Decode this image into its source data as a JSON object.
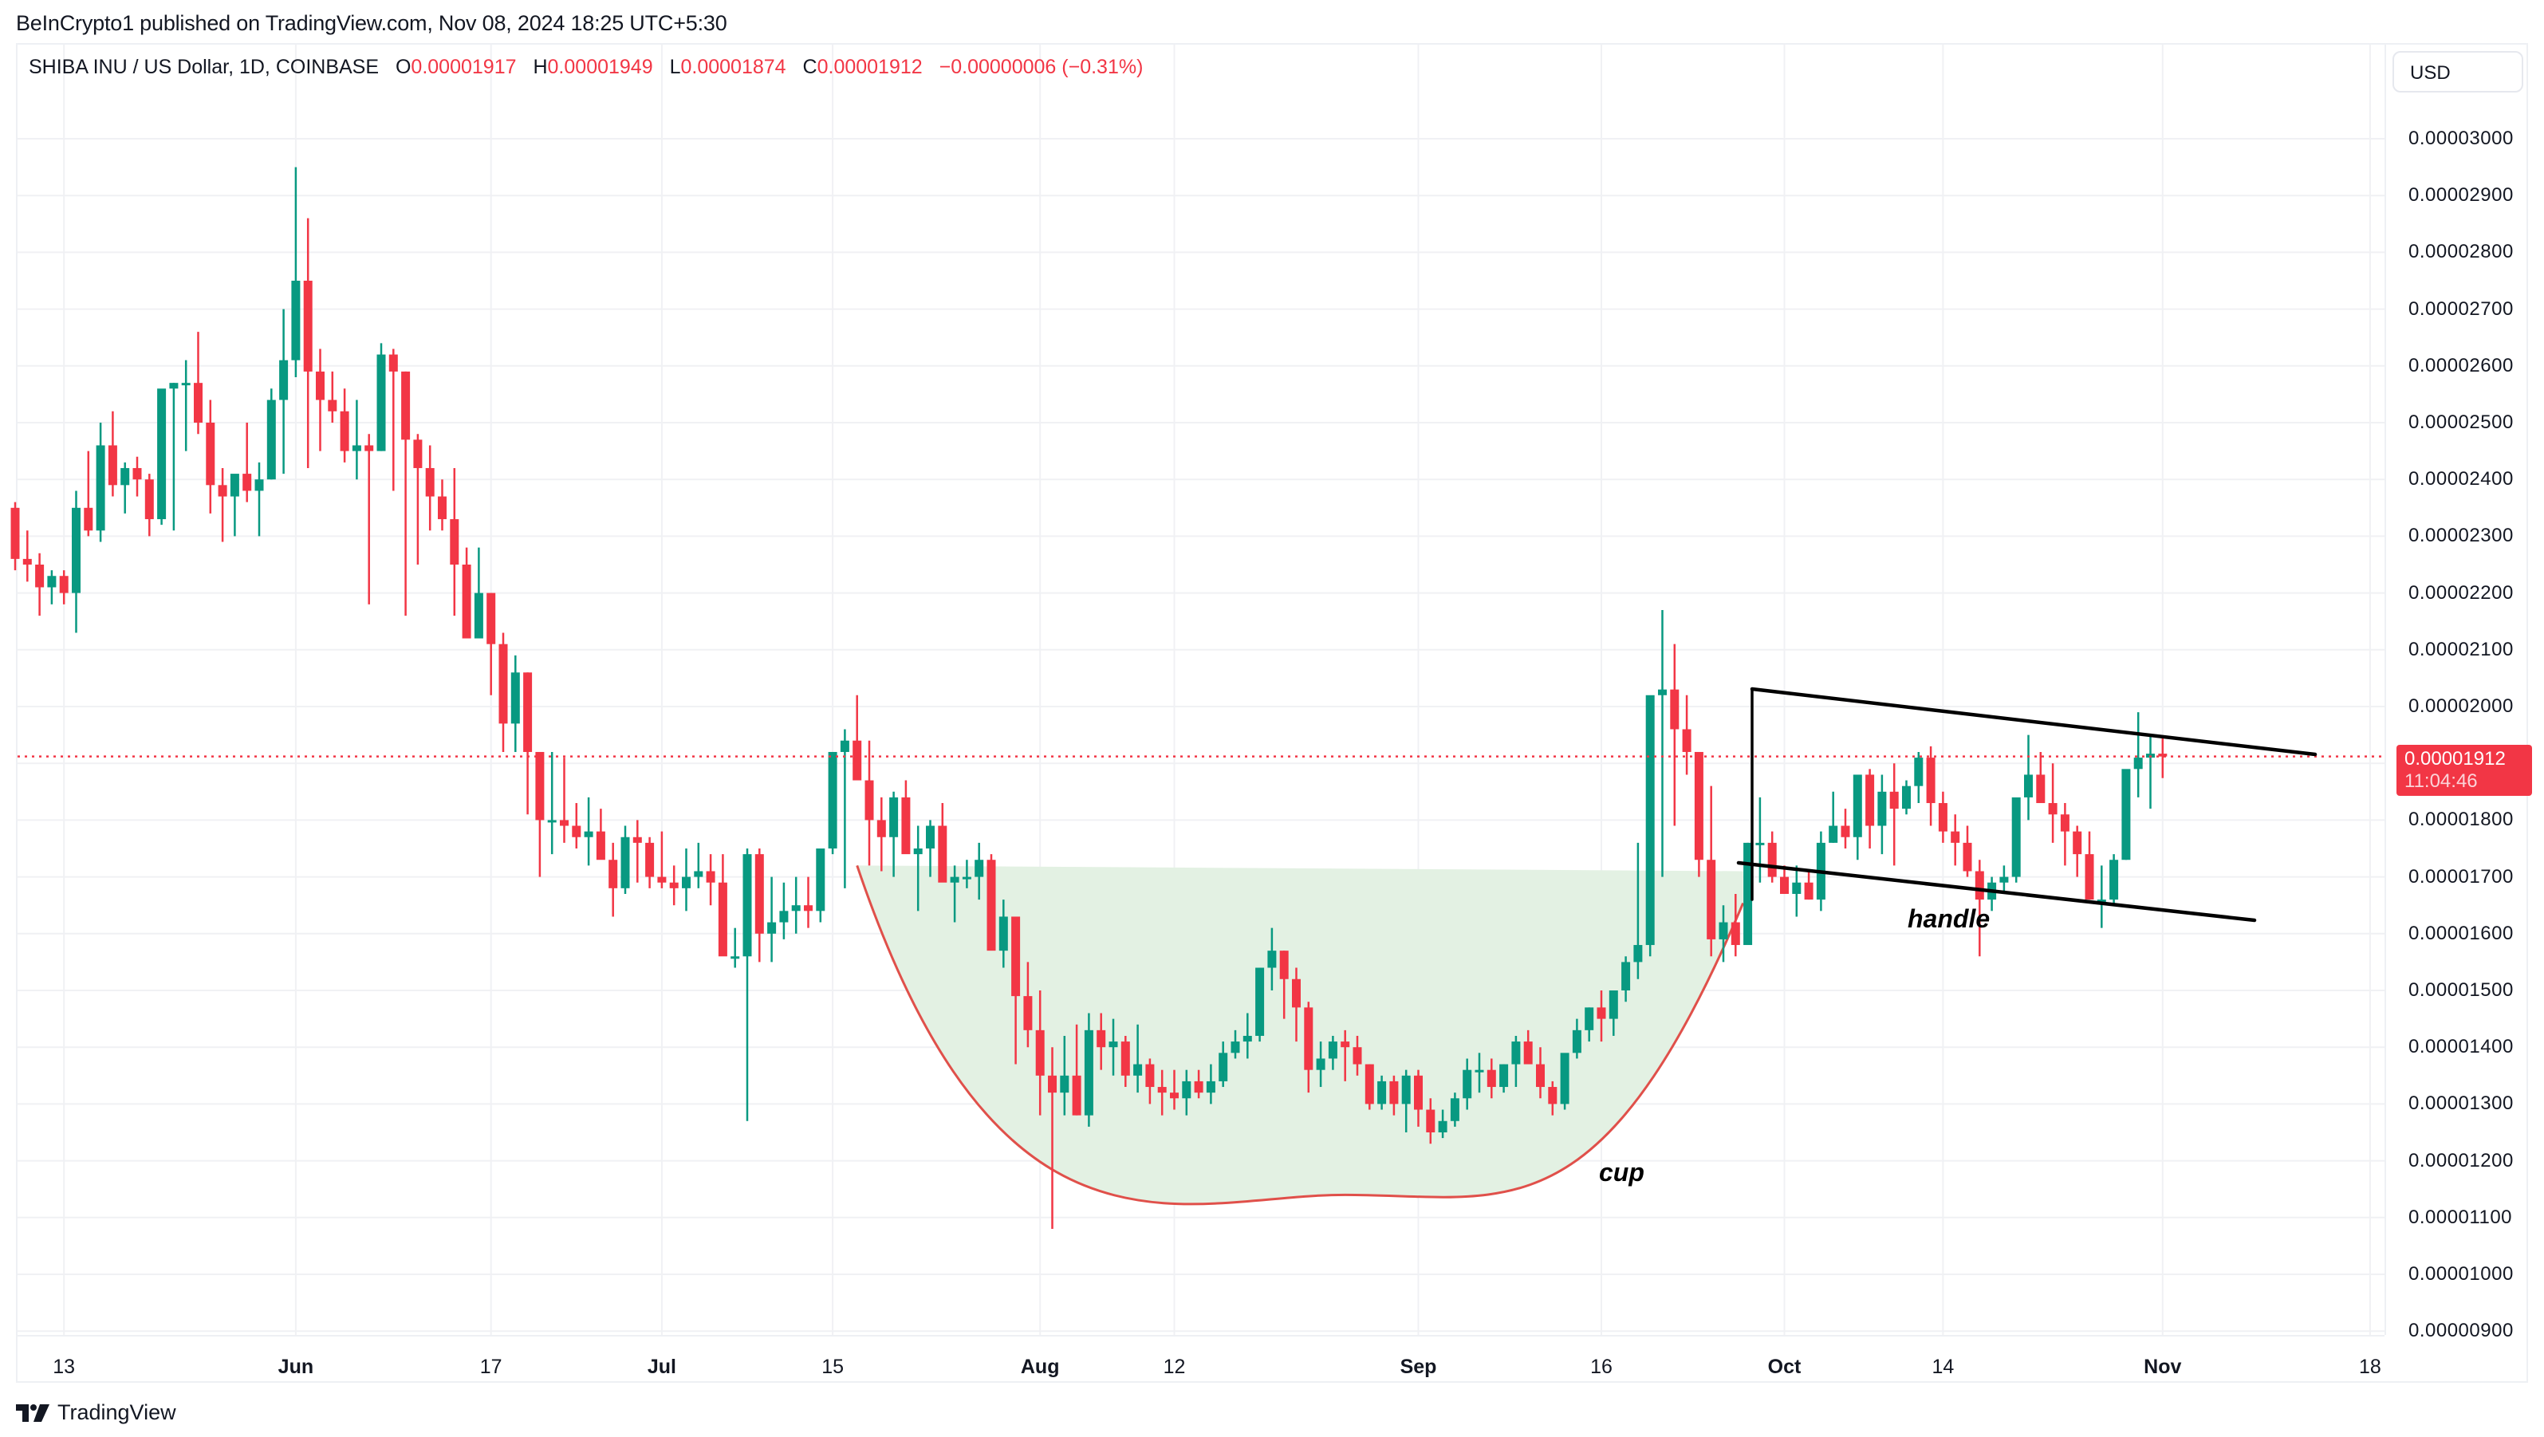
{
  "header": {
    "publisher": "BeInCrypto1 published on TradingView.com, Nov 08, 2024 18:25 UTC+5:30"
  },
  "legend": {
    "symbol": "SHIBA INU / US Dollar, 1D, COINBASE",
    "open_label": "O",
    "open": "0.00001917",
    "high_label": "H",
    "high": "0.00001949",
    "low_label": "L",
    "low": "0.00001874",
    "close_label": "C",
    "close": "0.00001912",
    "change": "−0.00000006 (−0.31%)"
  },
  "currency_button": "USD",
  "price_tag": {
    "price": "0.00001912",
    "countdown": "11:04:46"
  },
  "annotations": {
    "cup": "cup",
    "handle": "handle"
  },
  "footer": {
    "brand": "TradingView"
  },
  "colors": {
    "up": "#089981",
    "down": "#F23645",
    "cup_fill": "#e2f0e2",
    "cup_line": "#e0504a",
    "trendline": "#000000",
    "grid": "#f0f1f4"
  },
  "chart_data": {
    "type": "candlestick",
    "title": "SHIBA INU / US Dollar, 1D, COINBASE",
    "price_unit": "1e-8 USD",
    "ylabel": "USD",
    "ylim": [
      9e-06,
      3e-05
    ],
    "yticks": [
      "0.00003000",
      "0.00002900",
      "0.00002800",
      "0.00002700",
      "0.00002600",
      "0.00002500",
      "0.00002400",
      "0.00002300",
      "0.00002200",
      "0.00002100",
      "0.00002000",
      "0.00001900",
      "0.00001800",
      "0.00001700",
      "0.00001600",
      "0.00001500",
      "0.00001400",
      "0.00001300",
      "0.00001200",
      "0.00001100",
      "0.00001000",
      "0.00000900"
    ],
    "xticks": [
      {
        "label": "13",
        "bold": false,
        "day": 4
      },
      {
        "label": "Jun",
        "bold": true,
        "day": 23
      },
      {
        "label": "17",
        "bold": false,
        "day": 39
      },
      {
        "label": "Jul",
        "bold": true,
        "day": 53
      },
      {
        "label": "15",
        "bold": false,
        "day": 67
      },
      {
        "label": "Aug",
        "bold": true,
        "day": 84
      },
      {
        "label": "12",
        "bold": false,
        "day": 95
      },
      {
        "label": "Sep",
        "bold": true,
        "day": 115
      },
      {
        "label": "16",
        "bold": false,
        "day": 130
      },
      {
        "label": "Oct",
        "bold": true,
        "day": 145
      },
      {
        "label": "14",
        "bold": false,
        "day": 158
      },
      {
        "label": "Nov",
        "bold": true,
        "day": 176
      },
      {
        "label": "18",
        "bold": false,
        "day": 193
      }
    ],
    "first_day": "2024-05-09",
    "last_price": 1.912e-05,
    "candles_ohlc": [
      [
        2350,
        2360,
        2240,
        2260
      ],
      [
        2260,
        2310,
        2220,
        2250
      ],
      [
        2250,
        2270,
        2160,
        2210
      ],
      [
        2210,
        2240,
        2180,
        2230
      ],
      [
        2230,
        2240,
        2180,
        2200
      ],
      [
        2200,
        2380,
        2130,
        2350
      ],
      [
        2350,
        2450,
        2300,
        2310
      ],
      [
        2310,
        2500,
        2290,
        2460
      ],
      [
        2460,
        2520,
        2370,
        2390
      ],
      [
        2390,
        2430,
        2340,
        2420
      ],
      [
        2420,
        2440,
        2370,
        2400
      ],
      [
        2400,
        2410,
        2300,
        2330
      ],
      [
        2330,
        2480,
        2320,
        2560
      ],
      [
        2560,
        2570,
        2310,
        2570
      ],
      [
        2570,
        2610,
        2450,
        2570
      ],
      [
        2570,
        2660,
        2480,
        2500
      ],
      [
        2500,
        2540,
        2340,
        2390
      ],
      [
        2390,
        2420,
        2290,
        2370
      ],
      [
        2370,
        2390,
        2300,
        2410
      ],
      [
        2410,
        2500,
        2360,
        2380
      ],
      [
        2380,
        2430,
        2300,
        2400
      ],
      [
        2400,
        2560,
        2400,
        2540
      ],
      [
        2540,
        2700,
        2410,
        2610
      ],
      [
        2610,
        2950,
        2580,
        2750
      ],
      [
        2750,
        2860,
        2420,
        2590
      ],
      [
        2590,
        2630,
        2450,
        2540
      ],
      [
        2540,
        2590,
        2500,
        2520
      ],
      [
        2520,
        2560,
        2430,
        2450
      ],
      [
        2450,
        2540,
        2400,
        2460
      ],
      [
        2460,
        2480,
        2180,
        2450
      ],
      [
        2450,
        2640,
        2450,
        2620
      ],
      [
        2620,
        2630,
        2380,
        2590
      ],
      [
        2590,
        2590,
        2160,
        2470
      ],
      [
        2470,
        2480,
        2250,
        2420
      ],
      [
        2420,
        2460,
        2310,
        2370
      ],
      [
        2370,
        2400,
        2310,
        2330
      ],
      [
        2330,
        2420,
        2160,
        2250
      ],
      [
        2250,
        2280,
        2180,
        2120
      ],
      [
        2120,
        2280,
        2150,
        2200
      ],
      [
        2200,
        2200,
        2020,
        2110
      ],
      [
        2110,
        2130,
        1920,
        1970
      ],
      [
        1970,
        2090,
        1920,
        2060
      ],
      [
        2060,
        2060,
        1810,
        1920
      ],
      [
        1920,
        1920,
        1700,
        1800
      ],
      [
        1800,
        1920,
        1740,
        1800
      ],
      [
        1800,
        1910,
        1760,
        1790
      ],
      [
        1790,
        1830,
        1750,
        1770
      ],
      [
        1770,
        1840,
        1720,
        1780
      ],
      [
        1780,
        1820,
        1750,
        1730
      ],
      [
        1730,
        1760,
        1630,
        1680
      ],
      [
        1680,
        1790,
        1670,
        1770
      ],
      [
        1770,
        1800,
        1690,
        1760
      ],
      [
        1760,
        1770,
        1680,
        1700
      ],
      [
        1700,
        1780,
        1680,
        1690
      ],
      [
        1690,
        1720,
        1650,
        1680
      ],
      [
        1680,
        1750,
        1640,
        1700
      ],
      [
        1700,
        1760,
        1680,
        1710
      ],
      [
        1710,
        1740,
        1650,
        1690
      ],
      [
        1690,
        1740,
        1610,
        1560
      ],
      [
        1560,
        1610,
        1540,
        1560
      ],
      [
        1560,
        1750,
        1270,
        1740
      ],
      [
        1740,
        1750,
        1550,
        1600
      ],
      [
        1600,
        1700,
        1550,
        1620
      ],
      [
        1620,
        1690,
        1590,
        1640
      ],
      [
        1640,
        1700,
        1600,
        1650
      ],
      [
        1650,
        1700,
        1610,
        1640
      ],
      [
        1640,
        1710,
        1620,
        1750
      ],
      [
        1750,
        1840,
        1740,
        1920
      ],
      [
        1920,
        1960,
        1680,
        1940
      ],
      [
        1940,
        2020,
        1900,
        1870
      ],
      [
        1870,
        1940,
        1720,
        1800
      ],
      [
        1800,
        1840,
        1710,
        1770
      ],
      [
        1770,
        1850,
        1700,
        1840
      ],
      [
        1840,
        1870,
        1780,
        1740
      ],
      [
        1740,
        1790,
        1640,
        1750
      ],
      [
        1750,
        1800,
        1700,
        1790
      ],
      [
        1790,
        1830,
        1730,
        1690
      ],
      [
        1690,
        1720,
        1620,
        1700
      ],
      [
        1700,
        1730,
        1680,
        1700
      ],
      [
        1700,
        1760,
        1660,
        1730
      ],
      [
        1730,
        1740,
        1600,
        1570
      ],
      [
        1570,
        1660,
        1540,
        1630
      ],
      [
        1630,
        1630,
        1370,
        1490
      ],
      [
        1490,
        1550,
        1400,
        1430
      ],
      [
        1430,
        1500,
        1280,
        1350
      ],
      [
        1350,
        1400,
        1080,
        1320
      ],
      [
        1320,
        1420,
        1280,
        1350
      ],
      [
        1350,
        1440,
        1280,
        1280
      ],
      [
        1280,
        1460,
        1260,
        1430
      ],
      [
        1430,
        1460,
        1360,
        1400
      ],
      [
        1400,
        1450,
        1350,
        1410
      ],
      [
        1410,
        1420,
        1330,
        1350
      ],
      [
        1350,
        1440,
        1320,
        1370
      ],
      [
        1370,
        1380,
        1300,
        1330
      ],
      [
        1330,
        1360,
        1280,
        1320
      ],
      [
        1320,
        1360,
        1290,
        1310
      ],
      [
        1310,
        1360,
        1280,
        1340
      ],
      [
        1340,
        1360,
        1310,
        1320
      ],
      [
        1320,
        1370,
        1300,
        1340
      ],
      [
        1340,
        1410,
        1330,
        1390
      ],
      [
        1390,
        1430,
        1380,
        1410
      ],
      [
        1410,
        1460,
        1380,
        1420
      ],
      [
        1420,
        1540,
        1410,
        1540
      ],
      [
        1540,
        1610,
        1500,
        1570
      ],
      [
        1570,
        1570,
        1450,
        1520
      ],
      [
        1520,
        1540,
        1410,
        1470
      ],
      [
        1470,
        1480,
        1320,
        1360
      ],
      [
        1360,
        1410,
        1330,
        1380
      ],
      [
        1380,
        1420,
        1360,
        1410
      ],
      [
        1410,
        1430,
        1340,
        1400
      ],
      [
        1400,
        1420,
        1350,
        1370
      ],
      [
        1370,
        1370,
        1290,
        1300
      ],
      [
        1300,
        1350,
        1290,
        1340
      ],
      [
        1340,
        1350,
        1280,
        1300
      ],
      [
        1300,
        1360,
        1250,
        1350
      ],
      [
        1350,
        1360,
        1260,
        1290
      ],
      [
        1290,
        1310,
        1230,
        1250
      ],
      [
        1250,
        1290,
        1240,
        1270
      ],
      [
        1270,
        1320,
        1260,
        1310
      ],
      [
        1310,
        1380,
        1290,
        1360
      ],
      [
        1360,
        1390,
        1320,
        1360
      ],
      [
        1360,
        1380,
        1310,
        1330
      ],
      [
        1330,
        1370,
        1320,
        1370
      ],
      [
        1370,
        1420,
        1330,
        1410
      ],
      [
        1410,
        1430,
        1380,
        1370
      ],
      [
        1370,
        1400,
        1310,
        1330
      ],
      [
        1330,
        1340,
        1280,
        1300
      ],
      [
        1300,
        1380,
        1290,
        1390
      ],
      [
        1390,
        1450,
        1380,
        1430
      ],
      [
        1430,
        1470,
        1410,
        1470
      ],
      [
        1470,
        1500,
        1410,
        1450
      ],
      [
        1450,
        1490,
        1420,
        1500
      ],
      [
        1500,
        1560,
        1480,
        1550
      ],
      [
        1550,
        1760,
        1520,
        1580
      ],
      [
        1580,
        1960,
        1560,
        2020
      ],
      [
        2020,
        2170,
        1700,
        2030
      ],
      [
        2030,
        2110,
        1790,
        1960
      ],
      [
        1960,
        2020,
        1880,
        1920
      ],
      [
        1920,
        1920,
        1700,
        1730
      ],
      [
        1730,
        1860,
        1560,
        1590
      ],
      [
        1590,
        1650,
        1550,
        1620
      ],
      [
        1620,
        1670,
        1560,
        1580
      ],
      [
        1580,
        1760,
        1590,
        1760
      ],
      [
        1760,
        1840,
        1690,
        1760
      ],
      [
        1760,
        1780,
        1690,
        1700
      ],
      [
        1700,
        1720,
        1670,
        1670
      ],
      [
        1670,
        1720,
        1630,
        1690
      ],
      [
        1690,
        1710,
        1660,
        1660
      ],
      [
        1660,
        1780,
        1640,
        1760
      ],
      [
        1760,
        1850,
        1760,
        1790
      ],
      [
        1790,
        1820,
        1750,
        1770
      ],
      [
        1770,
        1830,
        1730,
        1880
      ],
      [
        1880,
        1890,
        1750,
        1790
      ],
      [
        1790,
        1880,
        1740,
        1850
      ],
      [
        1850,
        1900,
        1720,
        1820
      ],
      [
        1820,
        1870,
        1810,
        1860
      ],
      [
        1860,
        1920,
        1830,
        1910
      ],
      [
        1910,
        1930,
        1790,
        1830
      ],
      [
        1830,
        1850,
        1760,
        1780
      ],
      [
        1780,
        1810,
        1720,
        1760
      ],
      [
        1760,
        1790,
        1700,
        1710
      ],
      [
        1710,
        1730,
        1560,
        1660
      ],
      [
        1660,
        1700,
        1640,
        1690
      ],
      [
        1690,
        1720,
        1670,
        1700
      ],
      [
        1700,
        1810,
        1690,
        1840
      ],
      [
        1840,
        1950,
        1800,
        1880
      ],
      [
        1880,
        1920,
        1830,
        1830
      ],
      [
        1830,
        1900,
        1760,
        1810
      ],
      [
        1810,
        1830,
        1720,
        1780
      ],
      [
        1780,
        1790,
        1700,
        1740
      ],
      [
        1740,
        1780,
        1660,
        1660
      ],
      [
        1660,
        1720,
        1610,
        1660
      ],
      [
        1660,
        1740,
        1650,
        1730
      ],
      [
        1730,
        1840,
        1730,
        1890
      ],
      [
        1890,
        1990,
        1840,
        1910
      ],
      [
        1910,
        1950,
        1820,
        1917
      ],
      [
        1917,
        1949,
        1874,
        1912
      ]
    ],
    "overlays": [
      {
        "type": "parabolic_cup",
        "label": "cup",
        "fill": "#e2f0e2",
        "stroke": "#e0504a",
        "rim_price_left": 1720,
        "rim_price_right": 1710,
        "bottom_price": 1140,
        "bottom_date": "Aug 26"
      },
      {
        "type": "descending_channel",
        "label": "handle",
        "upper": {
          "from": [
            "Sep 27",
            2030
          ],
          "to": [
            "Nov 13",
            1930
          ]
        },
        "lower": {
          "from": [
            "Sep 26",
            1730
          ],
          "to": [
            "Nov 8",
            1630
          ]
        }
      },
      {
        "type": "vertical_line",
        "date": "Sep 27",
        "from": 2030,
        "to": 1660
      }
    ]
  }
}
